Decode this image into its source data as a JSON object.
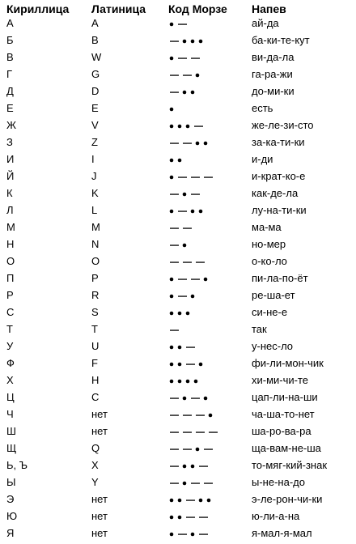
{
  "headers": {
    "cyrillic": "Кириллица",
    "latin": "Латиница",
    "morse": "Код Морзе",
    "tune": "Напев"
  },
  "rows": [
    {
      "cyr": "А",
      "lat": "A",
      "code": ".-",
      "tune": "ай-да"
    },
    {
      "cyr": "Б",
      "lat": "B",
      "code": "-...",
      "tune": "ба-ки-те-кут"
    },
    {
      "cyr": "В",
      "lat": "W",
      "code": ".--",
      "tune": "ви-да-ла"
    },
    {
      "cyr": "Г",
      "lat": "G",
      "code": "--.",
      "tune": "га-ра-жи"
    },
    {
      "cyr": "Д",
      "lat": "D",
      "code": "-..",
      "tune": "до-ми-ки"
    },
    {
      "cyr": "Е",
      "lat": "E",
      "code": ".",
      "tune": "есть"
    },
    {
      "cyr": "Ж",
      "lat": "V",
      "code": "...-",
      "tune": "же-ле-зи-сто"
    },
    {
      "cyr": "З",
      "lat": "Z",
      "code": "--..",
      "tune": "за-ка-ти-ки"
    },
    {
      "cyr": "И",
      "lat": "I",
      "code": "..",
      "tune": "и-ди"
    },
    {
      "cyr": "Й",
      "lat": "J",
      "code": ".---",
      "tune": "и-крат-ко-е"
    },
    {
      "cyr": "К",
      "lat": "K",
      "code": "-.-",
      "tune": "как-де-ла"
    },
    {
      "cyr": "Л",
      "lat": "L",
      "code": ".-..",
      "tune": "лу-на-ти-ки"
    },
    {
      "cyr": "М",
      "lat": "M",
      "code": "--",
      "tune": "ма-ма"
    },
    {
      "cyr": "Н",
      "lat": "N",
      "code": "-.",
      "tune": "но-мер"
    },
    {
      "cyr": "О",
      "lat": "O",
      "code": "---",
      "tune": "о-ко-ло"
    },
    {
      "cyr": "П",
      "lat": "P",
      "code": ".--.",
      "tune": "пи-ла-по-ёт"
    },
    {
      "cyr": "Р",
      "lat": "R",
      "code": ".-.",
      "tune": "ре-ша-ет"
    },
    {
      "cyr": "С",
      "lat": "S",
      "code": "...",
      "tune": "си-не-е"
    },
    {
      "cyr": "Т",
      "lat": "T",
      "code": "-",
      "tune": "так"
    },
    {
      "cyr": "У",
      "lat": "U",
      "code": "..-",
      "tune": "у-нес-ло"
    },
    {
      "cyr": "Ф",
      "lat": "F",
      "code": "..-.",
      "tune": "фи-ли-мон-чик"
    },
    {
      "cyr": "Х",
      "lat": "H",
      "code": "....",
      "tune": "хи-ми-чи-те"
    },
    {
      "cyr": "Ц",
      "lat": "C",
      "code": "-.-.",
      "tune": "цап-ли-на-ши"
    },
    {
      "cyr": "Ч",
      "lat": "нет",
      "code": "---.",
      "tune": "ча-ша-то-нет"
    },
    {
      "cyr": "Ш",
      "lat": "нет",
      "code": "----",
      "tune": "ша-ро-ва-ра"
    },
    {
      "cyr": "Щ",
      "lat": "Q",
      "code": "--.-",
      "tune": "ща-вам-не-ша"
    },
    {
      "cyr": "Ь, Ъ",
      "lat": "X",
      "code": "-..-",
      "tune": "то-мяг-кий-знак"
    },
    {
      "cyr": "Ы",
      "lat": "Y",
      "code": "-.--",
      "tune": "ы-не-на-до"
    },
    {
      "cyr": "Э",
      "lat": "нет",
      "code": "..-..",
      "tune": "э-ле-рон-чи-ки"
    },
    {
      "cyr": "Ю",
      "lat": "нет",
      "code": "..--",
      "tune": "ю-ли-а-на"
    },
    {
      "cyr": "Я",
      "lat": "нет",
      "code": ".-.-",
      "tune": "я-мал-я-мал"
    }
  ]
}
